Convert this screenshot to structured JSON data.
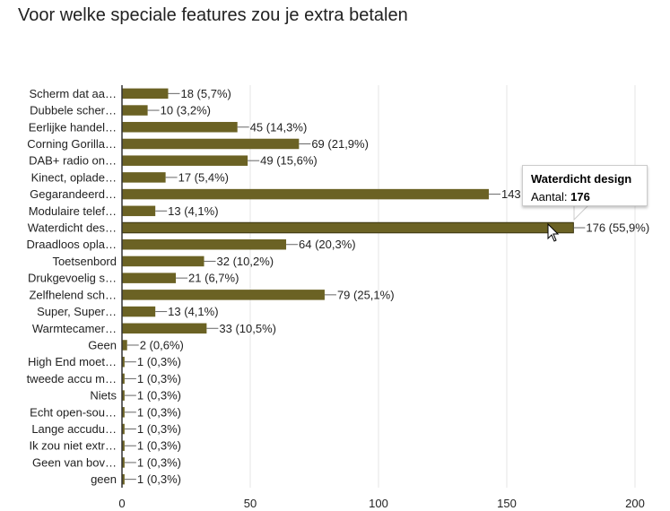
{
  "title": "Voor welke speciale features zou je extra betalen",
  "colors": {
    "bar": "#6b6224",
    "grid": "#e6e6e6",
    "axis": "#333333",
    "text": "#222222"
  },
  "tooltip": {
    "title": "Waterdicht design",
    "label": "Aantal:",
    "value": "176"
  },
  "chart_data": {
    "type": "bar",
    "orientation": "horizontal",
    "title": "Voor welke speciale features zou je extra betalen",
    "categories": [
      "Scherm dat aa…",
      "Dubbele scher…",
      "Eerlijke handel…",
      "Corning Gorilla…",
      "DAB+ radio on…",
      "Kinect, oplade…",
      "Gegarandeerd…",
      "Modulaire telef…",
      "Waterdicht des…",
      "Draadloos opla…",
      "Toetsenbord",
      "Drukgevoelig s…",
      "Zelfhelend sch…",
      "Super, Super…",
      "Warmtecamer…",
      "Geen",
      "High End moet…",
      "tweede accu m…",
      "Niets",
      "Echt open-sou…",
      "Lange accudu…",
      "Ik zou niet extr…",
      "Geen van bov…",
      "geen"
    ],
    "values": [
      18,
      10,
      45,
      69,
      49,
      17,
      143,
      13,
      176,
      64,
      32,
      21,
      79,
      13,
      33,
      2,
      1,
      1,
      1,
      1,
      1,
      1,
      1,
      1
    ],
    "data_labels": [
      "18 (5,7%)",
      "10 (3,2%)",
      "45 (14,3%)",
      "69 (21,9%)",
      "49 (15,6%)",
      "17 (5,4%)",
      "143",
      "13 (4,1%)",
      "176 (55,9%)",
      "64 (20,3%)",
      "32 (10,2%)",
      "21 (6,7%)",
      "79 (25,1%)",
      "13 (4,1%)",
      "33 (10,5%)",
      "2 (0,6%)",
      "1 (0,3%)",
      "1 (0,3%)",
      "1 (0,3%)",
      "1 (0,3%)",
      "1 (0,3%)",
      "1 (0,3%)",
      "1 (0,3%)",
      "1 (0,3%)"
    ],
    "highlighted_index": 8,
    "xlim": [
      0,
      200
    ],
    "xticks": [
      0,
      50,
      100,
      150,
      200
    ],
    "grid": true,
    "legend": "none"
  }
}
